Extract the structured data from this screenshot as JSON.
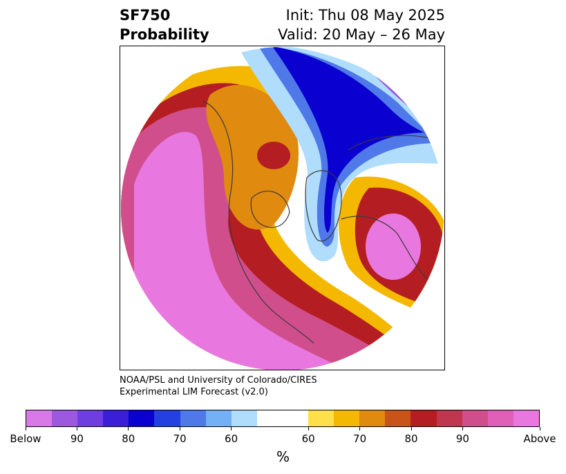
{
  "title": {
    "line1": "SF750",
    "line2": "Probability",
    "init": "Init: Thu 08 May 2025",
    "valid": "Valid: 20 May – 26 May"
  },
  "credit": {
    "line1": "NOAA/PSL and University of Colorado/CIRES",
    "line2": "Experimental LIM Forecast (v2.0)"
  },
  "colorbar": {
    "colors": [
      "#d879e8",
      "#9d58e0",
      "#6f3ee0",
      "#3a1ed8",
      "#0a00d0",
      "#2440e0",
      "#4f78e8",
      "#74b0f4",
      "#b0ddfc",
      "#ffffff",
      "#ffffff",
      "#ffe04a",
      "#f4b800",
      "#e08a10",
      "#c85418",
      "#b41e22",
      "#c0364e",
      "#d04e8c",
      "#e060b8",
      "#e878e0"
    ],
    "labels": [
      "Below",
      "90",
      "80",
      "70",
      "60",
      "60",
      "70",
      "80",
      "90",
      "Above"
    ],
    "units": "%"
  },
  "map_colors": {
    "above": "#e878e0",
    "above90": "#d04e8c",
    "above80": "#b41e22",
    "above70": "#c85418",
    "above60": "#f4b800",
    "below60": "#b0ddfc",
    "below70": "#4f78e8",
    "below80": "#0a00d0",
    "below90": "#9d58e0"
  }
}
